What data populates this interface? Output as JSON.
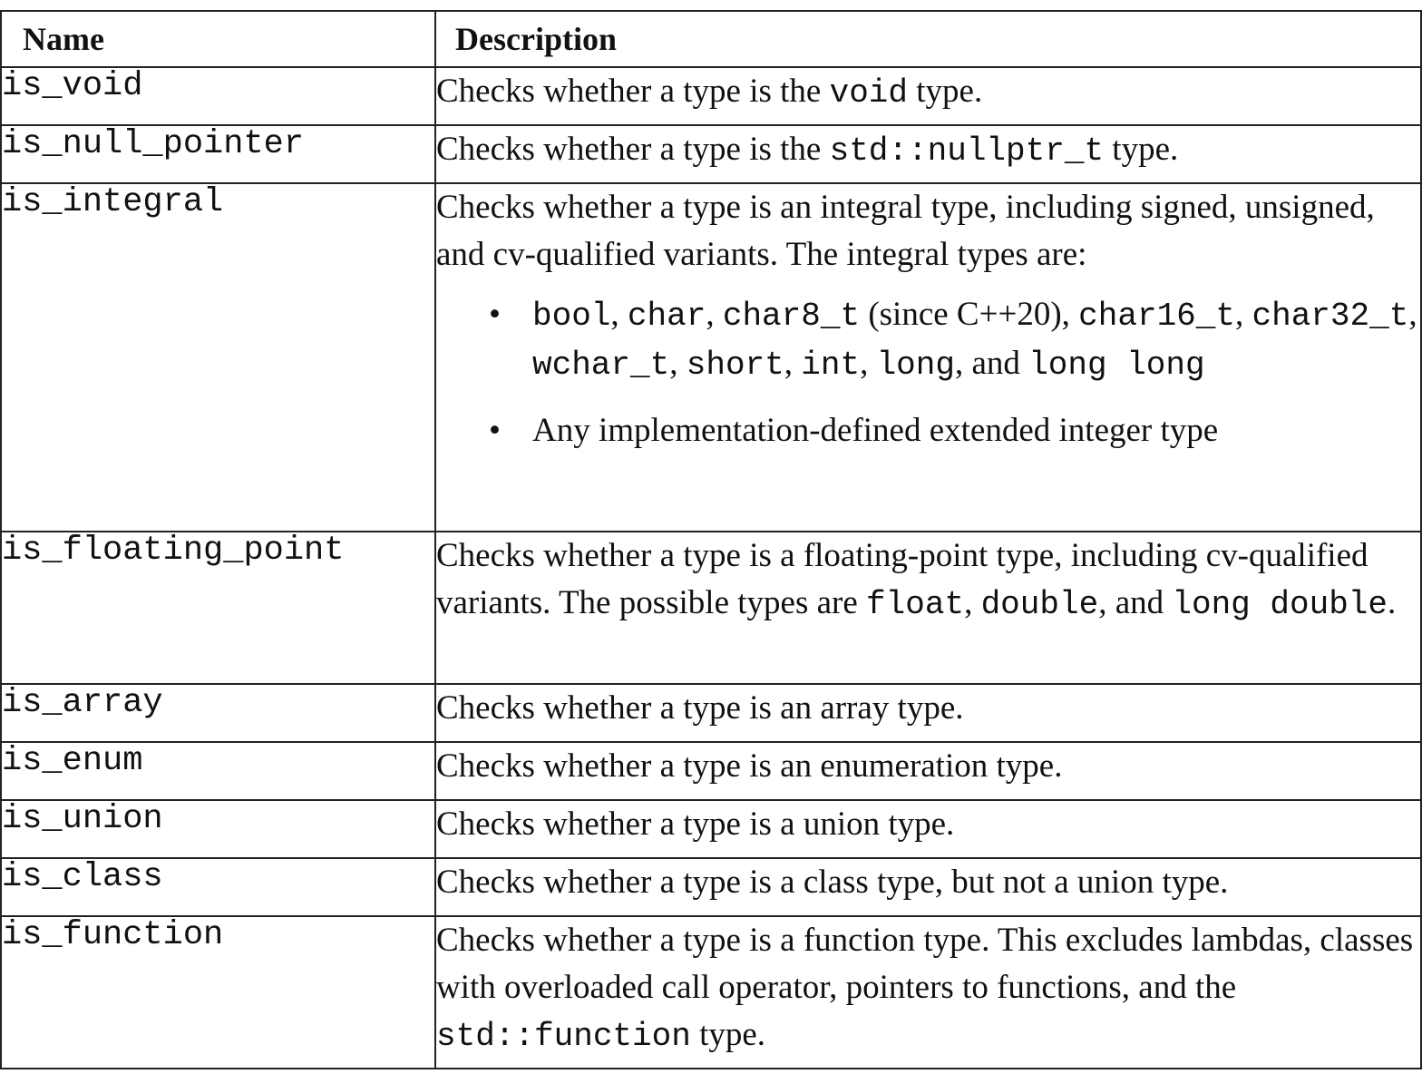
{
  "table": {
    "headers": {
      "name": "Name",
      "description": "Description"
    },
    "rows": {
      "is_void": {
        "name": "is_void",
        "d1": "Checks whether a type is the ",
        "c1": "void",
        "d2": " type."
      },
      "is_null_pointer": {
        "name": "is_null_pointer",
        "d1": "Checks whether a type is the ",
        "c1": "std::nullptr_t",
        "d2": " type."
      },
      "is_integral": {
        "name": "is_integral",
        "intro": "Checks whether a type is an integral type, including signed, unsigned, and cv-qualified variants. The integral types are:",
        "bullet_symbol": "•",
        "b1": {
          "c_bool": "bool",
          "sep_comma_1": ", ",
          "c_char": "char",
          "sep_comma_2": ", ",
          "c_char8": "char8_t",
          "since": " (since C++20), ",
          "c_char16": "char16_t",
          "sep_comma_3": ", ",
          "c_char32": "char32_t",
          "sep_comma_4": ", ",
          "c_wchar": "wchar_t",
          "sep_comma_5": ", ",
          "c_short": "short",
          "sep_comma_6": ", ",
          "c_int": "int",
          "sep_comma_7": ", ",
          "c_long": "long",
          "and": ", and ",
          "c_longlong": "long long"
        },
        "b2": "Any implementation-defined extended integer type"
      },
      "is_floating_point": {
        "name": "is_floating_point",
        "d1": "Checks whether a type is a floating-point type, including cv-qualified variants. The possible types are ",
        "c_float": "float",
        "sep1": ", ",
        "c_double": "double",
        "sep2": ", and ",
        "c_longdouble": "long double",
        "end": "."
      },
      "is_array": {
        "name": "is_array",
        "desc": "Checks whether a type is an array type."
      },
      "is_enum": {
        "name": "is_enum",
        "desc": "Checks whether a type is an enumeration type."
      },
      "is_union": {
        "name": "is_union",
        "desc": "Checks whether a type is a union type."
      },
      "is_class": {
        "name": "is_class",
        "desc": "Checks whether a type is a class type, but not a union type."
      },
      "is_function": {
        "name": "is_function",
        "d1": "Checks whether a type is a function type. This excludes lambdas, classes with overloaded call operator, pointers to functions, and the ",
        "c1": "std::function",
        "d2": " type."
      }
    }
  }
}
